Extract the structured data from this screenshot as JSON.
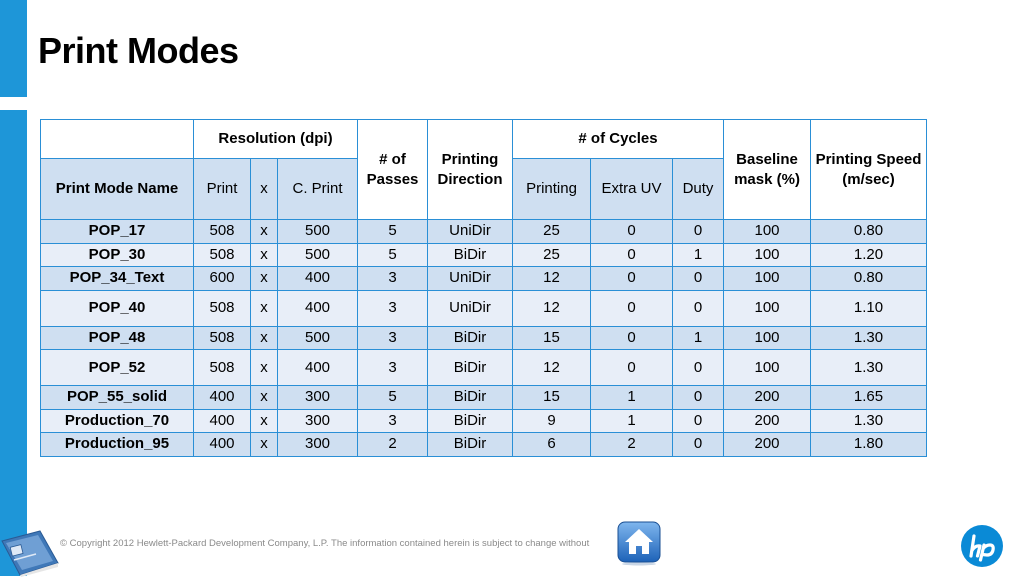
{
  "title": "Print Modes",
  "header": {
    "resolution_group": "Resolution (dpi)",
    "passes": "# of Passes",
    "direction": "Printing Direction",
    "cycles_group": "# of Cycles",
    "baseline": "Baseline mask (%)",
    "speed": "Printing Speed (m/sec)",
    "mode_name": "Print Mode Name",
    "res_print": "Print",
    "res_x": "x",
    "res_cprint": "C. Print",
    "cyc_printing": "Printing",
    "cyc_extra_uv": "Extra UV",
    "cyc_duty": "Duty"
  },
  "rows": [
    {
      "name": "POP_17",
      "print": "508",
      "x": "x",
      "cprint": "500",
      "passes": "5",
      "direction": "UniDir",
      "printing": "25",
      "extra_uv": "0",
      "duty": "0",
      "baseline": "100",
      "speed": "0.80"
    },
    {
      "name": "POP_30",
      "print": "508",
      "x": "x",
      "cprint": "500",
      "passes": "5",
      "direction": "BiDir",
      "printing": "25",
      "extra_uv": "0",
      "duty": "1",
      "baseline": "100",
      "speed": "1.20"
    },
    {
      "name": "POP_34_Text",
      "print": "600",
      "x": "x",
      "cprint": "400",
      "passes": "3",
      "direction": "UniDir",
      "printing": "12",
      "extra_uv": "0",
      "duty": "0",
      "baseline": "100",
      "speed": "0.80"
    },
    {
      "name": "POP_40",
      "print": "508",
      "x": "x",
      "cprint": "400",
      "passes": "3",
      "direction": "UniDir",
      "printing": "12",
      "extra_uv": "0",
      "duty": "0",
      "baseline": "100",
      "speed": "1.10"
    },
    {
      "name": "POP_48",
      "print": "508",
      "x": "x",
      "cprint": "500",
      "passes": "3",
      "direction": "BiDir",
      "printing": "15",
      "extra_uv": "0",
      "duty": "1",
      "baseline": "100",
      "speed": "1.30"
    },
    {
      "name": "POP_52",
      "print": "508",
      "x": "x",
      "cprint": "400",
      "passes": "3",
      "direction": "BiDir",
      "printing": "12",
      "extra_uv": "0",
      "duty": "0",
      "baseline": "100",
      "speed": "1.30"
    },
    {
      "name": "POP_55_solid",
      "print": "400",
      "x": "x",
      "cprint": "300",
      "passes": "5",
      "direction": "BiDir",
      "printing": "15",
      "extra_uv": "1",
      "duty": "0",
      "baseline": "200",
      "speed": "1.65"
    },
    {
      "name": "Production_70",
      "print": "400",
      "x": "x",
      "cprint": "300",
      "passes": "3",
      "direction": "BiDir",
      "printing": "9",
      "extra_uv": "1",
      "duty": "0",
      "baseline": "200",
      "speed": "1.30"
    },
    {
      "name": "Production_95",
      "print": "400",
      "x": "x",
      "cprint": "300",
      "passes": "2",
      "direction": "BiDir",
      "printing": "6",
      "extra_uv": "2",
      "duty": "0",
      "baseline": "200",
      "speed": "1.80"
    }
  ],
  "footer": {
    "copyright": "© Copyright 2012 Hewlett-Packard Development Company, L.P.  The information contained herein is subject to change without"
  },
  "icons": {
    "training": "training-book-icon",
    "home": "home-icon",
    "logo": "hp-logo-icon"
  },
  "colors": {
    "accent": "#1e96d8",
    "table_border": "#2a8fd6",
    "row_dark": "#cfdff1",
    "row_light": "#e8eef8"
  }
}
